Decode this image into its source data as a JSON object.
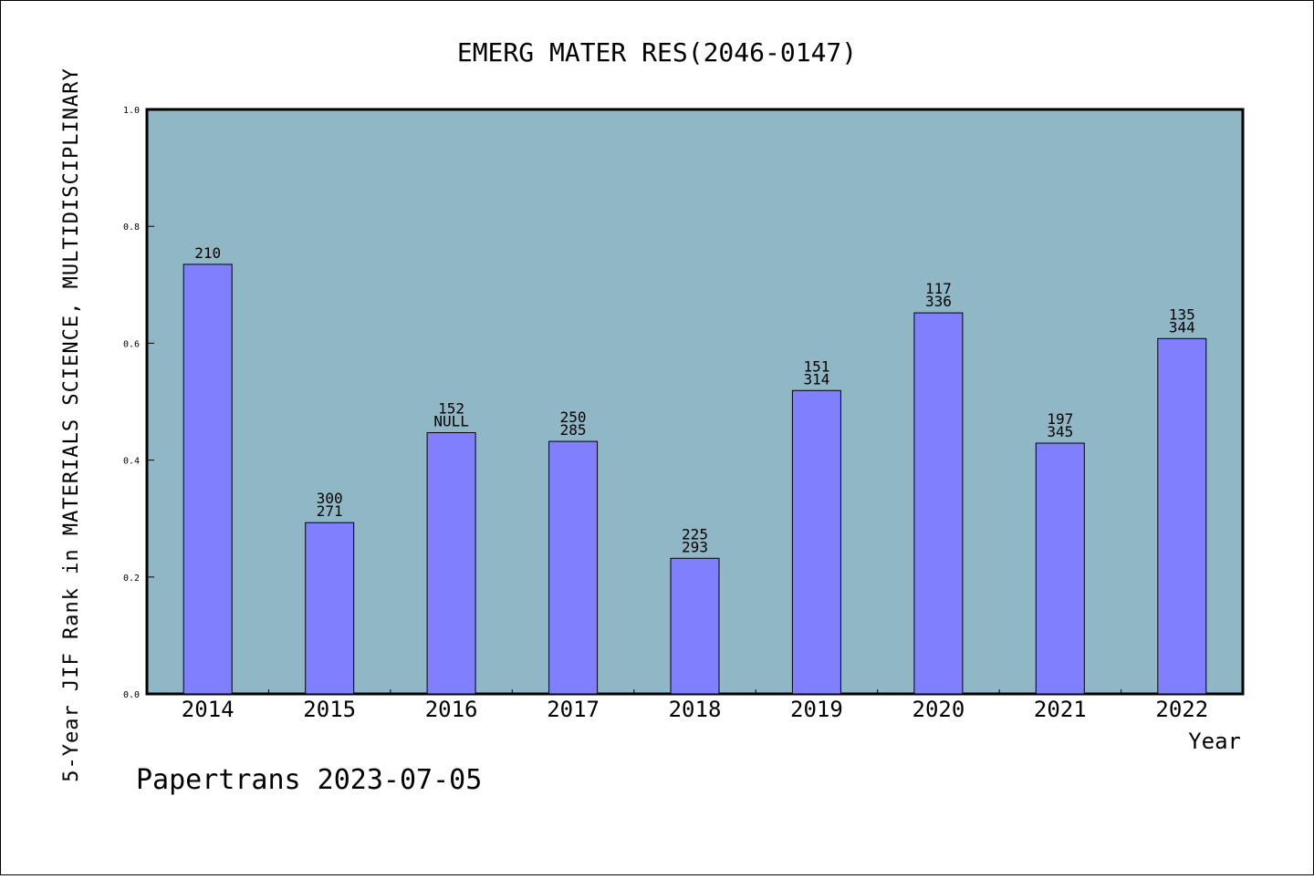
{
  "chart_data": {
    "type": "bar",
    "title": "EMERG MATER RES(2046-0147)",
    "xlabel": "Year",
    "ylabel": "5-Year JIF Rank in MATERIALS SCIENCE, MULTIDISCIPLINARY",
    "categories": [
      "2014",
      "2015",
      "2016",
      "2017",
      "2018",
      "2019",
      "2020",
      "2021",
      "2022"
    ],
    "values": [
      0.735,
      0.293,
      0.447,
      0.432,
      0.232,
      0.519,
      0.652,
      0.429,
      0.608
    ],
    "bar_labels": [
      [
        "210"
      ],
      [
        "300",
        "271"
      ],
      [
        "152",
        "NULL"
      ],
      [
        "250",
        "285"
      ],
      [
        "225",
        "293"
      ],
      [
        "151",
        "314"
      ],
      [
        "117",
        "336"
      ],
      [
        "197",
        "345"
      ],
      [
        "135",
        "344"
      ]
    ],
    "ylim": [
      0,
      1.0
    ],
    "yticks": [
      "0.0",
      "0.2",
      "0.4",
      "0.6",
      "0.8",
      "1.0"
    ],
    "grid": false,
    "colors": {
      "plot_background": "#8fb7c5",
      "bar_fill": "#8080ff",
      "bar_stroke": "#000000"
    }
  },
  "footer": "Papertrans 2023-07-05"
}
